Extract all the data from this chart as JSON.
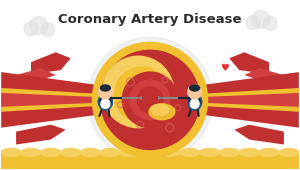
{
  "title": "Coronary Artery Disease",
  "title_fontsize": 9.5,
  "title_color": "#2c2c2c",
  "title_fontweight": "bold",
  "bg_color": "#ffffff",
  "fig_width": 3.0,
  "fig_height": 1.7,
  "dpi": 100,
  "colors": {
    "yellow": "#f0c030",
    "yellow_light": "#f5d060",
    "red_dark": "#c03030",
    "red_mid": "#d04040",
    "red_light": "#e06060",
    "shadow": "#c8c8c8",
    "white": "#ffffff",
    "cloud": "#e0e0e0",
    "heart": "#e83030",
    "skin": "#f5c8a0",
    "navy": "#1a2a3a",
    "blue": "#2060a0",
    "gray": "#888888",
    "needle": "#aaaaaa",
    "bg": "#ffffff"
  }
}
